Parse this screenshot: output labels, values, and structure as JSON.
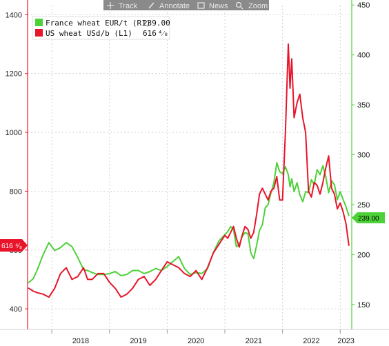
{
  "toolbar": {
    "items": [
      {
        "label": "Track",
        "icon": "crosshair-icon"
      },
      {
        "label": "Annotate",
        "icon": "pencil-icon"
      },
      {
        "label": "News",
        "icon": "news-icon"
      },
      {
        "label": "Zoom",
        "icon": "magnifier-icon"
      }
    ]
  },
  "legend": [
    {
      "name": "France wheat EUR/t (R1)",
      "value": "239.00",
      "color": "#4cd137"
    },
    {
      "name": "US wheat USd/b (L1)",
      "value": "616",
      "color": "#e8142a"
    }
  ],
  "last_value_tags": {
    "left": {
      "text": "616",
      "color": "#e8142a"
    },
    "right": {
      "text": "239.00",
      "color": "#4cd137"
    }
  },
  "chart_data": {
    "type": "line",
    "x_ticks": [
      "2018",
      "2019",
      "2020",
      "2021",
      "2022",
      "2023"
    ],
    "left_axis": {
      "ticks": [
        400,
        600,
        800,
        1000,
        1200,
        1400
      ],
      "range": [
        330,
        1450
      ],
      "color": "#e8142a"
    },
    "right_axis": {
      "ticks": [
        150,
        200,
        250,
        300,
        350,
        400,
        450
      ],
      "range": [
        125,
        455
      ],
      "color": "#4cd137"
    },
    "x_range": [
      2017.58,
      2023.2
    ],
    "grid": true,
    "legend_position": "top-left",
    "series": [
      {
        "name": "France wheat EUR/t (R1)",
        "axis": "right",
        "color": "#4cd137",
        "x": [
          2017.6,
          2017.68,
          2017.75,
          2017.85,
          2017.95,
          2018.05,
          2018.15,
          2018.25,
          2018.35,
          2018.45,
          2018.55,
          2018.62,
          2018.7,
          2018.8,
          2018.9,
          2019.0,
          2019.1,
          2019.2,
          2019.3,
          2019.4,
          2019.5,
          2019.6,
          2019.7,
          2019.8,
          2019.9,
          2020.0,
          2020.1,
          2020.2,
          2020.3,
          2020.4,
          2020.5,
          2020.6,
          2020.7,
          2020.8,
          2020.9,
          2021.0,
          2021.05,
          2021.1,
          2021.15,
          2021.2,
          2021.25,
          2021.3,
          2021.35,
          2021.4,
          2021.45,
          2021.5,
          2021.55,
          2021.6,
          2021.65,
          2021.7,
          2021.75,
          2021.8,
          2021.85,
          2021.9,
          2021.95,
          2022.0,
          2022.05,
          2022.1,
          2022.13,
          2022.16,
          2022.2,
          2022.25,
          2022.3,
          2022.35,
          2022.4,
          2022.45,
          2022.5,
          2022.55,
          2022.6,
          2022.65,
          2022.7,
          2022.75,
          2022.8,
          2022.85,
          2022.9,
          2022.95,
          2023.0,
          2023.05,
          2023.1,
          2023.15
        ],
        "values": [
          172,
          176,
          185,
          200,
          212,
          204,
          207,
          212,
          208,
          197,
          185,
          184,
          182,
          180,
          180,
          181,
          183,
          179,
          180,
          184,
          184,
          181,
          183,
          186,
          184,
          188,
          193,
          198,
          186,
          180,
          182,
          181,
          186,
          202,
          214,
          220,
          223,
          228,
          225,
          208,
          210,
          218,
          222,
          221,
          202,
          196,
          209,
          224,
          230,
          247,
          250,
          262,
          272,
          292,
          283,
          281,
          288,
          280,
          268,
          276,
          263,
          272,
          260,
          253,
          263,
          262,
          275,
          270,
          285,
          280,
          289,
          278,
          262,
          274,
          270,
          255,
          263,
          255,
          248,
          239
        ]
      },
      {
        "name": "US wheat USd/b (L1)",
        "axis": "left",
        "color": "#e8142a",
        "x": [
          2017.6,
          2017.68,
          2017.75,
          2017.85,
          2017.95,
          2018.05,
          2018.15,
          2018.25,
          2018.35,
          2018.45,
          2018.55,
          2018.62,
          2018.7,
          2018.8,
          2018.9,
          2019.0,
          2019.1,
          2019.2,
          2019.3,
          2019.4,
          2019.5,
          2019.6,
          2019.7,
          2019.8,
          2019.9,
          2020.0,
          2020.1,
          2020.2,
          2020.3,
          2020.4,
          2020.5,
          2020.6,
          2020.7,
          2020.8,
          2020.9,
          2021.0,
          2021.05,
          2021.1,
          2021.15,
          2021.2,
          2021.25,
          2021.3,
          2021.35,
          2021.4,
          2021.45,
          2021.5,
          2021.55,
          2021.6,
          2021.65,
          2021.7,
          2021.75,
          2021.8,
          2021.85,
          2021.9,
          2021.95,
          2022.0,
          2022.05,
          2022.1,
          2022.13,
          2022.16,
          2022.2,
          2022.25,
          2022.3,
          2022.35,
          2022.4,
          2022.45,
          2022.5,
          2022.55,
          2022.6,
          2022.65,
          2022.7,
          2022.75,
          2022.8,
          2022.85,
          2022.9,
          2022.95,
          2023.0,
          2023.05,
          2023.1,
          2023.15
        ],
        "values": [
          470,
          460,
          455,
          450,
          440,
          470,
          520,
          540,
          500,
          510,
          540,
          500,
          500,
          520,
          520,
          490,
          470,
          440,
          450,
          470,
          500,
          510,
          480,
          500,
          530,
          560,
          550,
          540,
          520,
          510,
          530,
          500,
          540,
          590,
          620,
          650,
          640,
          660,
          680,
          640,
          610,
          650,
          680,
          670,
          640,
          660,
          720,
          790,
          810,
          790,
          770,
          800,
          810,
          850,
          770,
          770,
          1000,
          1300,
          1150,
          1250,
          1050,
          1100,
          1130,
          1050,
          1000,
          800,
          780,
          830,
          820,
          790,
          830,
          880,
          920,
          810,
          790,
          740,
          760,
          730,
          690,
          616
        ]
      }
    ]
  }
}
